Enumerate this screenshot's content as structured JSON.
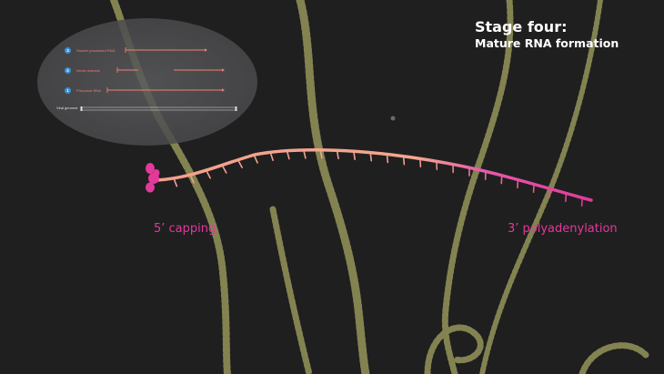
{
  "header": {
    "title": "Stage four:",
    "subtitle": "Mature RNA formation"
  },
  "labels": {
    "cap": "5’ capping",
    "polya": "3’ polyadenylation"
  },
  "inset": {
    "steps": [
      {
        "number": "3",
        "label": "Shorter processed RNA"
      },
      {
        "number": "2",
        "label": "Intron removal"
      },
      {
        "number": "1",
        "label": "Precursor RNA"
      }
    ],
    "genome_label": "Viral genome"
  },
  "colors": {
    "background": "#1f1f20",
    "strand": "#d6d57a",
    "rna_start": "#f4a08e",
    "rna_end": "#e2399a",
    "inset_arrow": "#f08070",
    "badge": "#3b8ed6"
  }
}
